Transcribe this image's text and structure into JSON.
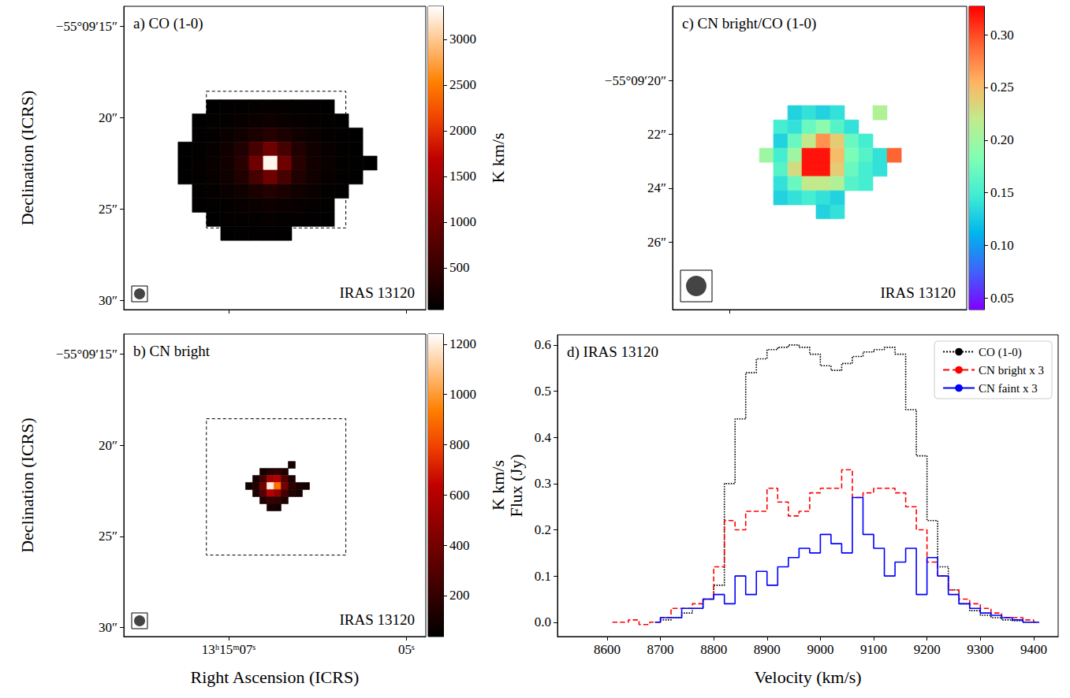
{
  "chart_data": [
    {
      "type": "heatmap",
      "title": "a) CO (1-0)",
      "annotation": "IRAS 13120",
      "ylabel": "Declination (ICRS)",
      "xlim": [
        8.18,
        4.78
      ],
      "xticks": [
        7,
        5
      ],
      "ylim": [
        30.5,
        13.9
      ],
      "yticks": [
        {
          "value": 15,
          "label": "−55°09′15″"
        },
        {
          "value": 20,
          "label": "20″"
        },
        {
          "value": 25,
          "label": "25″"
        },
        {
          "value": 30,
          "label": "30″"
        }
      ],
      "tick_labels": "y",
      "grid": false,
      "x": [
        7.489,
        7.329,
        7.169,
        7.009,
        6.849,
        6.689,
        6.529,
        6.369,
        6.209,
        6.049,
        5.889,
        5.729,
        5.569,
        5.409
      ],
      "y": [
        19.4,
        20.17,
        20.94,
        21.71,
        22.48,
        23.25,
        24.02,
        24.79,
        25.56,
        26.33
      ],
      "values": [
        [
          null,
          null,
          50,
          60,
          70,
          80,
          90,
          80,
          70,
          60,
          50,
          null,
          null,
          null
        ],
        [
          null,
          50,
          70,
          90,
          110,
          140,
          160,
          140,
          110,
          90,
          70,
          50,
          null,
          null
        ],
        [
          null,
          60,
          90,
          130,
          190,
          280,
          350,
          280,
          190,
          130,
          90,
          60,
          50,
          null
        ],
        [
          50,
          70,
          110,
          180,
          320,
          650,
          1000,
          650,
          320,
          180,
          110,
          70,
          50,
          null
        ],
        [
          50,
          80,
          120,
          200,
          400,
          1000,
          3300,
          1000,
          400,
          200,
          120,
          80,
          60,
          50
        ],
        [
          50,
          70,
          110,
          180,
          320,
          650,
          1000,
          650,
          320,
          180,
          110,
          70,
          50,
          null
        ],
        [
          null,
          60,
          90,
          130,
          190,
          280,
          350,
          280,
          190,
          130,
          90,
          60,
          null,
          null
        ],
        [
          null,
          50,
          70,
          90,
          110,
          140,
          160,
          140,
          110,
          90,
          70,
          null,
          null,
          null
        ],
        [
          null,
          null,
          50,
          60,
          80,
          90,
          100,
          90,
          80,
          60,
          50,
          null,
          null,
          null
        ],
        [
          null,
          null,
          null,
          50,
          60,
          60,
          60,
          50,
          null,
          null,
          null,
          null,
          null,
          null
        ]
      ],
      "region": {
        "x": [
          7.25,
          5.68
        ],
        "y": [
          18.55,
          26.03
        ]
      },
      "colorbar": {
        "label": "K km/s",
        "range": [
          43,
          3360
        ],
        "ticks": [
          500,
          1000,
          1500,
          2000,
          2500,
          3000
        ]
      }
    },
    {
      "type": "heatmap",
      "title": "b) CN bright",
      "annotation": "IRAS 13120",
      "xlabel": "Right Ascension (ICRS)",
      "ylabel": "Declination (ICRS)",
      "xlim": [
        8.18,
        4.78
      ],
      "xticks": [
        {
          "value": 7,
          "label": "13ʰ15ᵐ07ˢ"
        },
        {
          "value": 5,
          "label": "05ˢ"
        }
      ],
      "ylim": [
        30.5,
        13.9
      ],
      "yticks": [
        {
          "value": 15,
          "label": "−55°09′15″"
        },
        {
          "value": 20,
          "label": "20″"
        },
        {
          "value": 25,
          "label": "25″"
        },
        {
          "value": 30,
          "label": "30″"
        }
      ],
      "grid": false,
      "x": [
        6.769,
        6.689,
        6.609,
        6.529,
        6.449,
        6.369,
        6.289,
        6.209,
        6.129
      ],
      "y": [
        21.08,
        21.46,
        21.85,
        22.24,
        22.63,
        23.02,
        23.41
      ],
      "values": [
        [
          null,
          null,
          null,
          null,
          null,
          null,
          100,
          null,
          null
        ],
        [
          null,
          null,
          100,
          150,
          180,
          130,
          null,
          null,
          null
        ],
        [
          null,
          110,
          250,
          550,
          600,
          300,
          130,
          null,
          null
        ],
        [
          90,
          150,
          400,
          1200,
          900,
          400,
          180,
          120,
          90
        ],
        [
          null,
          120,
          300,
          600,
          500,
          250,
          140,
          100,
          null
        ],
        [
          null,
          null,
          130,
          200,
          190,
          130,
          null,
          null,
          null
        ],
        [
          null,
          null,
          null,
          110,
          100,
          null,
          null,
          null,
          null
        ]
      ],
      "region": {
        "x": [
          7.25,
          5.68
        ],
        "y": [
          18.55,
          26.03
        ]
      },
      "colorbar": {
        "label": "K km/s",
        "range": [
          37,
          1240
        ],
        "ticks": [
          200,
          400,
          600,
          800,
          1000,
          1200
        ]
      }
    },
    {
      "type": "heatmap",
      "title": "c) CN bright/CO (1-0)",
      "annotation": "IRAS 13120",
      "xlim": [
        7.438,
        5.17
      ],
      "xticks": [
        7
      ],
      "ylim": [
        28.51,
        17.25
      ],
      "yticks": [
        {
          "value": 20,
          "label": "−55°09′20″"
        },
        {
          "value": 22,
          "label": "22″"
        },
        {
          "value": 24,
          "label": "24″"
        },
        {
          "value": 26,
          "label": "26″"
        }
      ],
      "tick_labels": "y",
      "grid": false,
      "x": [
        6.714,
        6.605,
        6.495,
        6.386,
        6.277,
        6.167,
        6.058,
        5.948,
        5.839,
        5.729
      ],
      "y": [
        21.2,
        21.73,
        22.25,
        22.78,
        23.3,
        23.83,
        24.36,
        24.88
      ],
      "values": [
        [
          null,
          null,
          0.13,
          0.14,
          0.13,
          0.14,
          null,
          null,
          0.21,
          null
        ],
        [
          null,
          0.15,
          0.14,
          0.17,
          0.19,
          0.16,
          0.14,
          null,
          null,
          null
        ],
        [
          null,
          0.13,
          0.17,
          0.22,
          0.27,
          0.24,
          0.17,
          0.15,
          null,
          null
        ],
        [
          0.2,
          0.15,
          0.2,
          0.32,
          0.32,
          0.25,
          0.18,
          0.16,
          0.14,
          0.29
        ],
        [
          null,
          0.16,
          0.23,
          0.32,
          0.32,
          0.24,
          0.17,
          0.15,
          0.14,
          null
        ],
        [
          null,
          0.14,
          0.17,
          0.22,
          0.22,
          0.21,
          0.16,
          0.15,
          null,
          null
        ],
        [
          null,
          0.13,
          0.14,
          0.15,
          0.14,
          0.13,
          null,
          null,
          null,
          null
        ],
        [
          null,
          null,
          null,
          null,
          0.13,
          0.14,
          null,
          null,
          null,
          null
        ]
      ],
      "colorbar": {
        "range": [
          0.039,
          0.327
        ],
        "ticks": [
          0.05,
          {
            "value": 0.1,
            "label": "0.10"
          },
          0.15,
          {
            "value": 0.2,
            "label": "0.20"
          },
          0.25,
          {
            "value": 0.3,
            "label": "0.30"
          }
        ]
      }
    },
    {
      "type": "line",
      "title": "d) IRAS 13120",
      "xlabel": "Velocity (km/s)",
      "ylabel": "Flux (Jy)",
      "xlim": [
        8507,
        9446
      ],
      "xticks": [
        8600,
        8700,
        8800,
        8900,
        9000,
        9100,
        9200,
        9300,
        9400
      ],
      "ylim": [
        -0.031,
        0.622
      ],
      "yticks": [
        {
          "value": 0,
          "label": "0.0"
        },
        0.1,
        0.2,
        0.3,
        0.4,
        0.5,
        0.6
      ],
      "grid": false,
      "legend": "upper right",
      "series": [
        {
          "name": "CO (1-0)",
          "color": "#000000",
          "line_style": "dotted",
          "x": [
            8690,
            8710,
            8730,
            8750,
            8770,
            8790,
            8810,
            8830,
            8850,
            8870,
            8890,
            8910,
            8930,
            8950,
            8970,
            8990,
            9010,
            9030,
            9050,
            9070,
            9090,
            9110,
            9130,
            9150,
            9170,
            9190,
            9210,
            9230,
            9250,
            9270,
            9290,
            9310,
            9330,
            9350,
            9370,
            9390,
            9410
          ],
          "values": [
            0.0,
            0.005,
            0.01,
            0.02,
            0.03,
            0.05,
            0.08,
            0.3,
            0.44,
            0.54,
            0.57,
            0.59,
            0.595,
            0.6,
            0.595,
            0.58,
            0.555,
            0.545,
            0.56,
            0.575,
            0.585,
            0.59,
            0.595,
            0.58,
            0.46,
            0.36,
            0.22,
            0.12,
            0.07,
            0.04,
            0.025,
            0.015,
            0.01,
            0.005,
            0.003,
            0.0,
            0.0
          ]
        },
        {
          "name": "CN bright x 3",
          "color": "#ff0000",
          "line_style": "dashed",
          "x": [
            8610,
            8630,
            8650,
            8670,
            8690,
            8710,
            8730,
            8750,
            8770,
            8790,
            8810,
            8830,
            8850,
            8870,
            8890,
            8910,
            8930,
            8950,
            8970,
            8990,
            9010,
            9030,
            9050,
            9070,
            9090,
            9110,
            9130,
            9150,
            9170,
            9190,
            9210,
            9230,
            9250,
            9270,
            9290,
            9310,
            9330,
            9350,
            9370,
            9390,
            9410
          ],
          "values": [
            0.0,
            0.0,
            0.005,
            -0.005,
            0.0,
            0.01,
            0.03,
            0.03,
            0.04,
            0.05,
            0.12,
            0.22,
            0.2,
            0.24,
            0.24,
            0.29,
            0.26,
            0.23,
            0.24,
            0.28,
            0.29,
            0.29,
            0.33,
            0.27,
            0.28,
            0.29,
            0.29,
            0.28,
            0.25,
            0.2,
            0.13,
            0.1,
            0.07,
            0.05,
            0.04,
            0.03,
            0.02,
            0.01,
            0.01,
            0.005,
            0.0
          ]
        },
        {
          "name": "CN faint x 3",
          "color": "#0000ff",
          "line_style": "solid",
          "x": [
            8690,
            8710,
            8730,
            8750,
            8770,
            8790,
            8810,
            8830,
            8850,
            8870,
            8890,
            8910,
            8930,
            8950,
            8970,
            8990,
            9010,
            9030,
            9050,
            9070,
            9090,
            9110,
            9130,
            9150,
            9170,
            9190,
            9210,
            9230,
            9250,
            9270,
            9290,
            9310,
            9330,
            9350,
            9370,
            9390,
            9410
          ],
          "values": [
            0.0,
            0.01,
            0.01,
            0.03,
            0.03,
            0.05,
            0.06,
            0.04,
            0.1,
            0.06,
            0.11,
            0.08,
            0.12,
            0.14,
            0.16,
            0.15,
            0.19,
            0.17,
            0.15,
            0.27,
            0.19,
            0.16,
            0.1,
            0.13,
            0.16,
            0.06,
            0.14,
            0.1,
            0.06,
            0.04,
            0.03,
            0.02,
            0.015,
            0.01,
            0.005,
            0.0,
            0.0
          ]
        }
      ]
    }
  ]
}
